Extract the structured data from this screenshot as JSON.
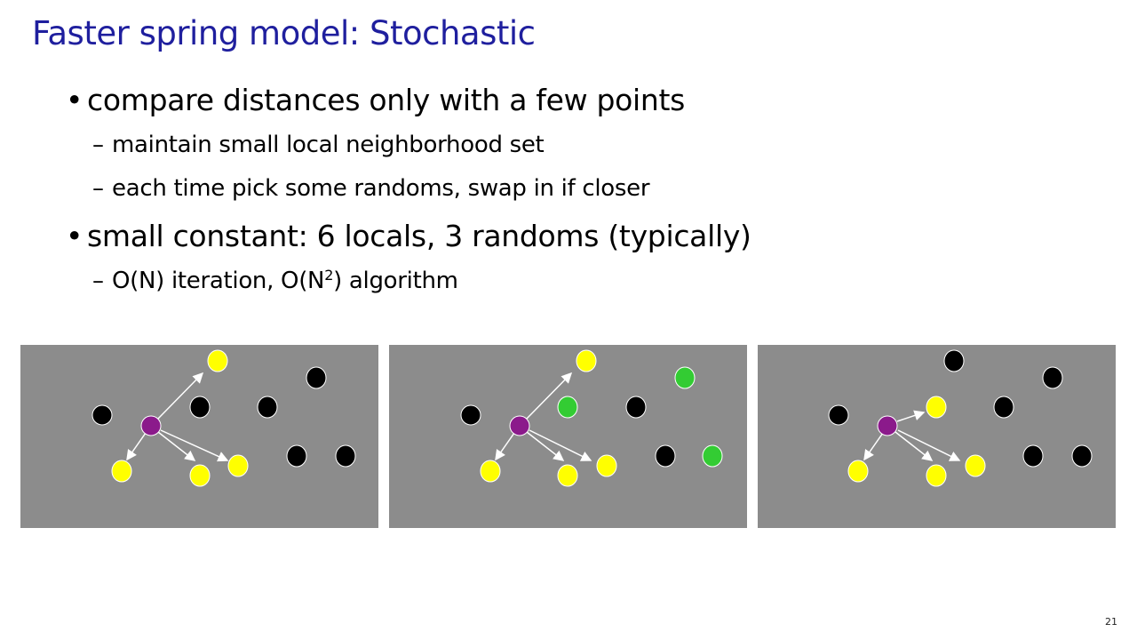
{
  "slide": {
    "title": "Faster spring model: Stochastic",
    "page_number": "21"
  },
  "bullets": {
    "b1": "compare distances only with a few points",
    "b1_sub1": "maintain small local neighborhood set",
    "b1_sub2": "each time pick some randoms, swap in if closer",
    "b2": "small constant: 6 locals, 3 randoms (typically)",
    "b2_sub1_pre": "O(N) iteration, O(N",
    "b2_sub1_sup": "2",
    "b2_sub1_post": ") algorithm"
  },
  "colors": {
    "title": "#1f1f9e",
    "panel_bg": "#8c8c8c",
    "focus_node": "#8b1a8b",
    "local_node": "#ffff00",
    "random_node": "#33cc33",
    "other_node": "#000000",
    "arrow": "#ffffff"
  }
}
